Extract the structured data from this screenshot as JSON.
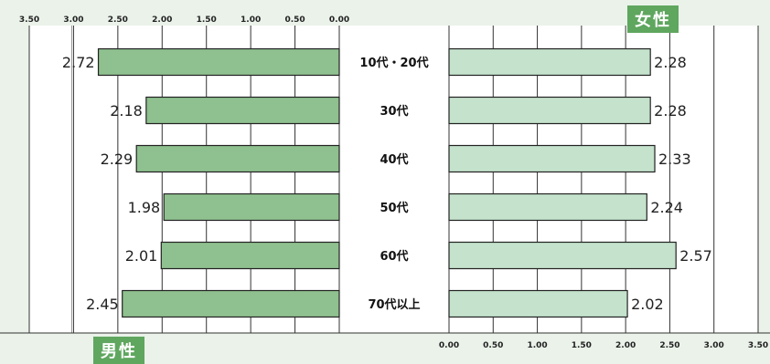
{
  "labels": {
    "female": "女性",
    "male": "男性"
  },
  "colors": {
    "male_bar": "#8fc08f",
    "female_bar": "#c4e2cc",
    "bar_stroke": "#222222",
    "accent": "#5fa65f"
  },
  "chart_data": {
    "type": "bar",
    "orientation": "horizontal-butterfly",
    "categories": [
      "10代・20代",
      "30代",
      "40代",
      "50代",
      "60代",
      "70代以上"
    ],
    "series": [
      {
        "name": "男性",
        "values": [
          2.72,
          2.18,
          2.29,
          1.98,
          2.01,
          2.45
        ],
        "side": "left"
      },
      {
        "name": "女性",
        "values": [
          2.28,
          2.28,
          2.33,
          2.24,
          2.57,
          2.02
        ],
        "side": "right"
      }
    ],
    "left_ticks": [
      "3.50",
      "3.00",
      "2.50",
      "2.00",
      "1.50",
      "1.00",
      "0.50",
      "0.00"
    ],
    "right_ticks": [
      "0.00",
      "0.50",
      "1.00",
      "1.50",
      "2.00",
      "2.50",
      "3.00",
      "3.50"
    ],
    "xlim": [
      0,
      3.5
    ],
    "grid": true
  }
}
